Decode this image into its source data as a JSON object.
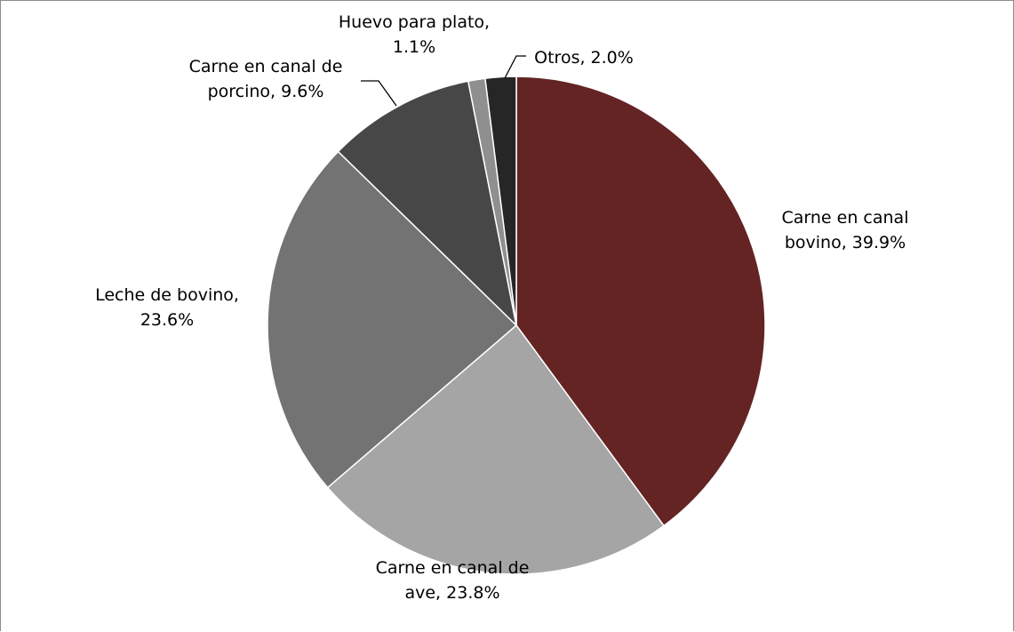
{
  "chart_data": {
    "type": "pie",
    "title": "",
    "slices": [
      {
        "label": "Carne en canal bovino",
        "value": 39.9,
        "label_lines": [
          "Carne en canal",
          "bovino, 39.9%"
        ],
        "color": "#632423"
      },
      {
        "label": "Carne en canal de ave",
        "value": 23.8,
        "label_lines": [
          "Carne en canal de",
          "ave, 23.8%"
        ],
        "color": "#a5a5a5"
      },
      {
        "label": "Leche de bovino",
        "value": 23.6,
        "label_lines": [
          "Leche de bovino,",
          "23.6%"
        ],
        "color": "#737373"
      },
      {
        "label": "Carne en canal de porcino",
        "value": 9.6,
        "label_lines": [
          "Carne en canal de",
          "porcino, 9.6%"
        ],
        "color": "#474747"
      },
      {
        "label": "Huevo para plato",
        "value": 1.1,
        "label_lines": [
          "Huevo para plato,",
          "1.1%"
        ],
        "color": "#8f8f8f"
      },
      {
        "label": "Otros",
        "value": 2.0,
        "label_lines": [
          "Otros, 2.0%"
        ],
        "color": "#262626"
      }
    ],
    "start_angle_deg": 0,
    "direction": "clockwise",
    "legend": "none",
    "data_labels": "outside"
  }
}
